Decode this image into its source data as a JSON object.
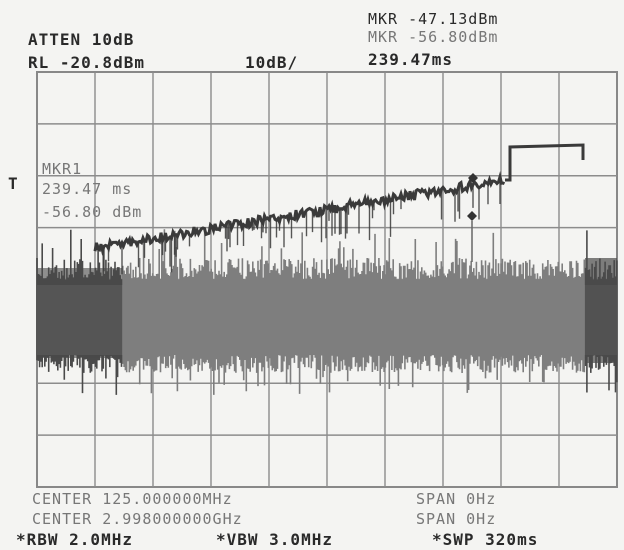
{
  "header": {
    "atten": "ATTEN 10dB",
    "ref_level": "RL -20.8dBm",
    "scale": "10dB/",
    "marker_line1": "MKR -47.13dBm",
    "marker_line2": "MKR -56.80dBm",
    "marker_time": "239.47ms"
  },
  "overlay": {
    "trace_flag": "T",
    "mkr_label": "MKR1",
    "mkr_time": "239.47 ms",
    "mkr_level": "-56.80 dBm"
  },
  "footer": {
    "center_1": "CENTER 125.000000MHz",
    "span_1": "SPAN 0Hz",
    "center_2": "CENTER 2.998000000GHz",
    "span_2": "SPAN 0Hz",
    "rbw": "*RBW 2.0MHz",
    "vbw": "*VBW 3.0MHz",
    "swp": "*SWP 320ms"
  },
  "trace_colors": {
    "noise_floor": "#7e7e7e",
    "noise_dark": "#4a4a4a",
    "max_hold": "#3a3a3a",
    "grid": "#8c8c8c"
  }
}
